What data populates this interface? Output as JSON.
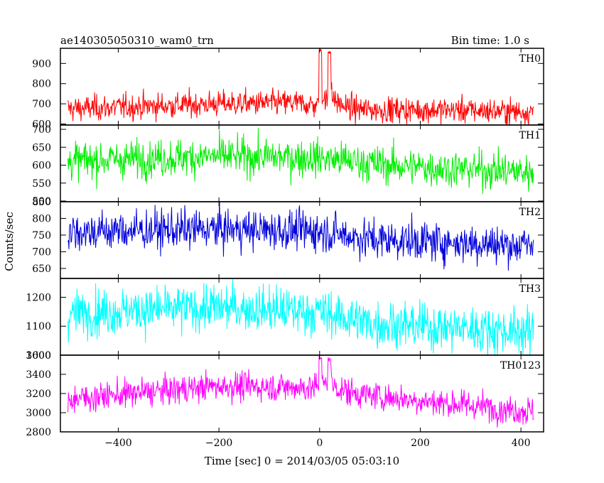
{
  "title_left": "ae140305050310_wam0_trn",
  "title_right": "Bin time: 1.0 s",
  "ylabel": "Counts/sec",
  "xlabel": "Time [sec] 0 = 2014/03/05 05:03:10",
  "chart_data": {
    "type": "line",
    "x_range": [
      -515,
      445
    ],
    "x_ticks": [
      -400,
      -200,
      0,
      200,
      400
    ],
    "x_data_range": [
      -500,
      425
    ],
    "bin_time_s": 1.0,
    "panels": [
      {
        "name": "TH0",
        "color": "#ff0000",
        "ylim": [
          595,
          975
        ],
        "yticks": [
          600,
          700,
          800,
          900
        ],
        "baseline": [
          [
            -500,
            675
          ],
          [
            -200,
            700
          ],
          [
            -50,
            705
          ],
          [
            0,
            690
          ],
          [
            100,
            670
          ],
          [
            250,
            670
          ],
          [
            425,
            660
          ]
        ],
        "noise": 32,
        "bursts": [
          {
            "t": 0,
            "peak": 960
          },
          {
            "t": 18,
            "peak": 960
          }
        ]
      },
      {
        "name": "TH1",
        "color": "#00ee00",
        "ylim": [
          498,
          712
        ],
        "yticks": [
          500,
          550,
          600,
          650,
          700
        ],
        "baseline": [
          [
            -500,
            612
          ],
          [
            -200,
            625
          ],
          [
            0,
            620
          ],
          [
            150,
            598
          ],
          [
            425,
            580
          ]
        ],
        "noise": 26,
        "bursts": []
      },
      {
        "name": "TH2",
        "color": "#0000dd",
        "ylim": [
          620,
          850
        ],
        "yticks": [
          650,
          700,
          750,
          800,
          850
        ],
        "baseline": [
          [
            -500,
            760
          ],
          [
            -200,
            768
          ],
          [
            0,
            762
          ],
          [
            100,
            738
          ],
          [
            425,
            718
          ]
        ],
        "noise": 30,
        "bursts": []
      },
      {
        "name": "TH3",
        "color": "#00ffff",
        "ylim": [
          1000,
          1265
        ],
        "yticks": [
          1000,
          1100,
          1200
        ],
        "baseline": [
          [
            -500,
            1145
          ],
          [
            -200,
            1165
          ],
          [
            0,
            1150
          ],
          [
            100,
            1110
          ],
          [
            425,
            1080
          ]
        ],
        "noise": 40,
        "bursts": []
      },
      {
        "name": "TH0123",
        "color": "#ff00ff",
        "ylim": [
          2800,
          3600
        ],
        "yticks": [
          2800,
          3000,
          3200,
          3400,
          3600
        ],
        "baseline": [
          [
            -500,
            3140
          ],
          [
            -200,
            3280
          ],
          [
            0,
            3260
          ],
          [
            100,
            3180
          ],
          [
            250,
            3100
          ],
          [
            425,
            3010
          ]
        ],
        "noise": 75,
        "bursts": [
          {
            "t": 0,
            "peak": 3580
          },
          {
            "t": 18,
            "peak": 3560
          }
        ]
      }
    ]
  }
}
